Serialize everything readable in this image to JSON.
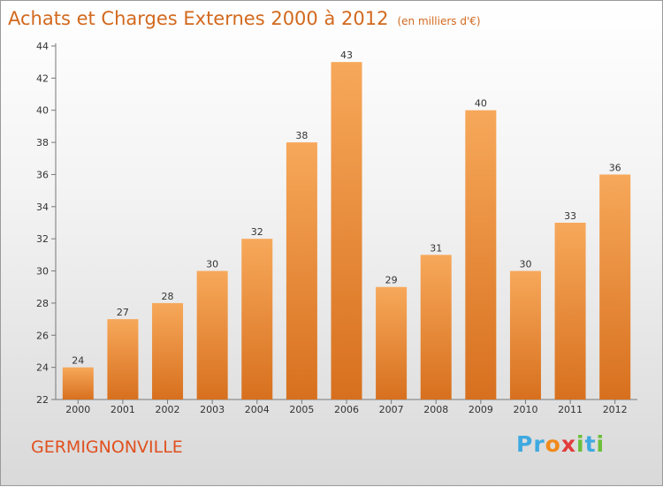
{
  "title": "Achats et Charges Externes 2000 à 2012",
  "unit": "(en milliers d'€)",
  "town": "GERMIGNONVILLE",
  "brand": [
    "Pr",
    "o",
    "x",
    "i",
    "t",
    "i"
  ],
  "colors": {
    "bar_top": "#f7a85a",
    "bar_bottom": "#d7701e",
    "title": "#d2691e",
    "town": "#e0501f"
  },
  "chart_data": {
    "type": "bar",
    "categories": [
      "2000",
      "2001",
      "2002",
      "2003",
      "2004",
      "2005",
      "2006",
      "2007",
      "2008",
      "2009",
      "2010",
      "2011",
      "2012"
    ],
    "values": [
      24,
      27,
      28,
      30,
      32,
      38,
      43,
      29,
      31,
      40,
      30,
      33,
      36
    ],
    "ylim": [
      22,
      44
    ],
    "yticks": [
      22,
      24,
      26,
      28,
      30,
      32,
      34,
      36,
      38,
      40,
      42,
      44
    ],
    "grid": false,
    "xlabel": "",
    "ylabel": ""
  }
}
